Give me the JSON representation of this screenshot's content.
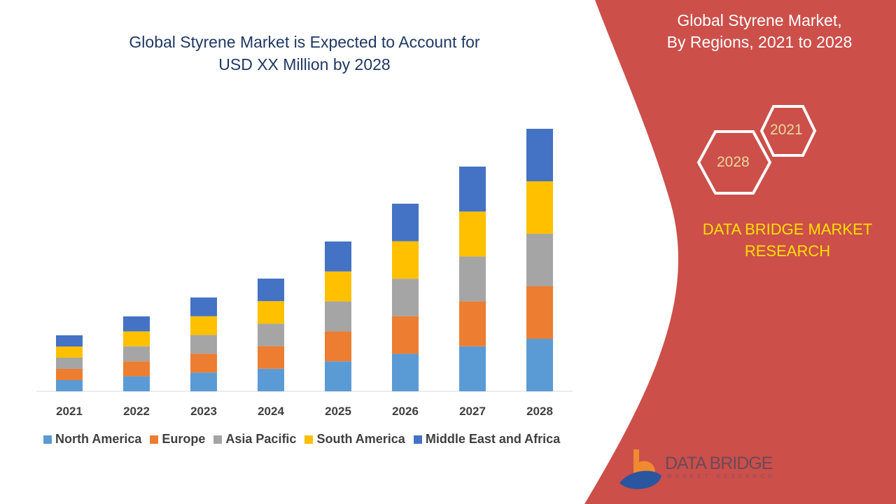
{
  "title": "Global Styrene Market is Expected to Account for USD XX Million by 2028",
  "title_lines": [
    "Global Styrene Market is Expected to Account for",
    "USD XX Million by 2028"
  ],
  "side_panel": {
    "title_lines": [
      "Global Styrene Market,",
      "By Regions, 2021 to 2028"
    ],
    "hex_labels": [
      "2021",
      "2028"
    ],
    "brand_lines": [
      "DATA BRIDGE MARKET",
      "RESEARCH"
    ],
    "logo_text": "DATA BRIDGE",
    "logo_subtext": "MARKET RESEARCH",
    "background_color": "#cc4f4a"
  },
  "chart_data": {
    "type": "bar",
    "stacked": true,
    "title": "Global Styrene Market is Expected to Account for USD XX Million by 2028",
    "categories": [
      "2021",
      "2022",
      "2023",
      "2024",
      "2025",
      "2026",
      "2027",
      "2028"
    ],
    "series": [
      {
        "name": "North America",
        "color": "#5b9bd5",
        "values": [
          16,
          21.4,
          26.8,
          32.2,
          42.8,
          53.6,
          64.2,
          75
        ]
      },
      {
        "name": "Europe",
        "color": "#ed7d31",
        "values": [
          16,
          21.4,
          26.8,
          32.2,
          42.8,
          53.6,
          64.2,
          75
        ]
      },
      {
        "name": "Asia Pacific",
        "color": "#a5a5a5",
        "values": [
          16,
          21.4,
          26.8,
          32.2,
          42.8,
          53.6,
          64.2,
          75
        ]
      },
      {
        "name": "South America",
        "color": "#ffc000",
        "values": [
          16,
          21.4,
          26.8,
          32.2,
          42.8,
          53.6,
          64.2,
          75
        ]
      },
      {
        "name": "Middle East and Africa",
        "color": "#4472c4",
        "values": [
          16,
          21.4,
          26.8,
          32.2,
          42.8,
          53.6,
          64.2,
          75
        ]
      }
    ],
    "yaxis_visible": false,
    "grid": false,
    "legend_position": "bottom"
  }
}
